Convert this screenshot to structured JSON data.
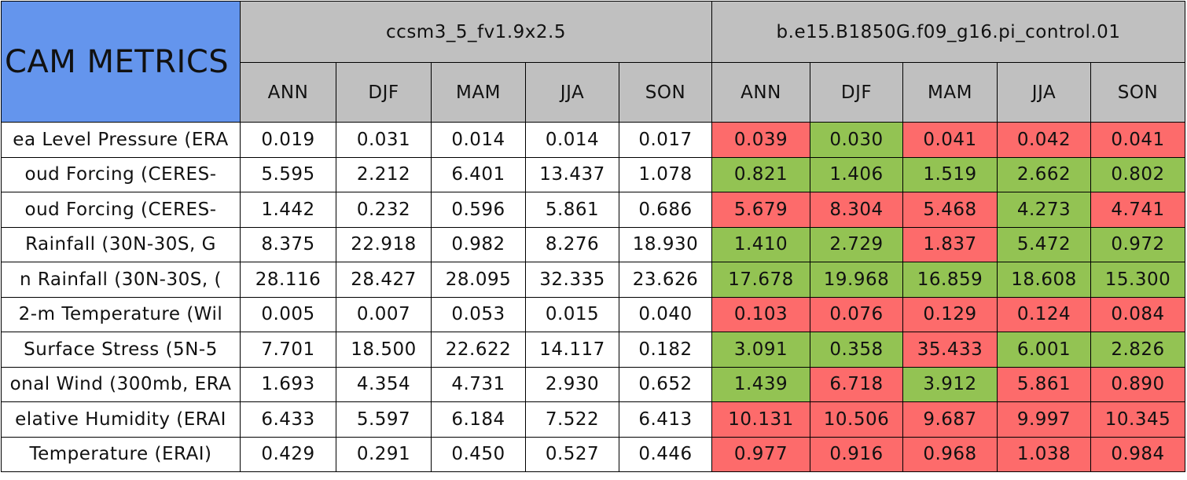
{
  "header": {
    "title": "CAM METRICS",
    "models": [
      "ccsm3_5_fv1.9x2.5",
      "b.e15.B1850G.f09_g16.pi_control.01"
    ],
    "seasons": [
      "ANN",
      "DJF",
      "MAM",
      "JJA",
      "SON"
    ]
  },
  "header_colors": {
    "title": "#6495ed",
    "column": "#c0c0c0",
    "base": "#ffffff"
  },
  "rows": [
    {
      "label": "ea Level Pressure (ERA",
      "values": [
        "0.019",
        "0.031",
        "0.014",
        "0.014",
        "0.017",
        "0.039",
        "0.030",
        "0.041",
        "0.042",
        "0.041"
      ],
      "colors": [
        "#fd6b6b",
        "#93c353",
        "#fd6b6b",
        "#fd6b6b",
        "#fd6b6b"
      ]
    },
    {
      "label": "oud Forcing (CERES-",
      "values": [
        "5.595",
        "2.212",
        "6.401",
        "13.437",
        "1.078",
        "0.821",
        "1.406",
        "1.519",
        "2.662",
        "0.802"
      ],
      "colors": [
        "#93c353",
        "#93c353",
        "#93c353",
        "#93c353",
        "#93c353"
      ]
    },
    {
      "label": "oud Forcing (CERES-",
      "values": [
        "1.442",
        "0.232",
        "0.596",
        "5.861",
        "0.686",
        "5.679",
        "8.304",
        "5.468",
        "4.273",
        "4.741"
      ],
      "colors": [
        "#fd6b6b",
        "#fd6b6b",
        "#fd6b6b",
        "#93c353",
        "#fd6b6b"
      ]
    },
    {
      "label": "Rainfall (30N-30S, G",
      "values": [
        "8.375",
        "22.918",
        "0.982",
        "8.276",
        "18.930",
        "1.410",
        "2.729",
        "1.837",
        "5.472",
        "0.972"
      ],
      "colors": [
        "#93c353",
        "#93c353",
        "#fd6b6b",
        "#93c353",
        "#93c353"
      ]
    },
    {
      "label": "n Rainfall (30N-30S, (",
      "values": [
        "28.116",
        "28.427",
        "28.095",
        "32.335",
        "23.626",
        "17.678",
        "19.968",
        "16.859",
        "18.608",
        "15.300"
      ],
      "colors": [
        "#93c353",
        "#93c353",
        "#93c353",
        "#93c353",
        "#93c353"
      ]
    },
    {
      "label": "2-m Temperature (Wil",
      "values": [
        "0.005",
        "0.007",
        "0.053",
        "0.015",
        "0.040",
        "0.103",
        "0.076",
        "0.129",
        "0.124",
        "0.084"
      ],
      "colors": [
        "#fd6b6b",
        "#fd6b6b",
        "#fd6b6b",
        "#fd6b6b",
        "#fd6b6b"
      ]
    },
    {
      "label": "Surface Stress (5N-5",
      "values": [
        "7.701",
        "18.500",
        "22.622",
        "14.117",
        "0.182",
        "3.091",
        "0.358",
        "35.433",
        "6.001",
        "2.826"
      ],
      "colors": [
        "#93c353",
        "#93c353",
        "#fd6b6b",
        "#93c353",
        "#93c353"
      ]
    },
    {
      "label": "onal Wind (300mb, ERA",
      "values": [
        "1.693",
        "4.354",
        "4.731",
        "2.930",
        "0.652",
        "1.439",
        "6.718",
        "3.912",
        "5.861",
        "0.890"
      ],
      "colors": [
        "#93c353",
        "#fd6b6b",
        "#93c353",
        "#fd6b6b",
        "#fd6b6b"
      ]
    },
    {
      "label": "elative Humidity (ERAI",
      "values": [
        "6.433",
        "5.597",
        "6.184",
        "7.522",
        "6.413",
        "10.131",
        "10.506",
        "9.687",
        "9.997",
        "10.345"
      ],
      "colors": [
        "#fd6b6b",
        "#fd6b6b",
        "#fd6b6b",
        "#fd6b6b",
        "#fd6b6b"
      ]
    },
    {
      "label": "Temperature (ERAI)",
      "values": [
        "0.429",
        "0.291",
        "0.450",
        "0.527",
        "0.446",
        "0.977",
        "0.916",
        "0.968",
        "1.038",
        "0.984"
      ],
      "colors": [
        "#fd6b6b",
        "#fd6b6b",
        "#fd6b6b",
        "#fd6b6b",
        "#fd6b6b"
      ]
    }
  ]
}
